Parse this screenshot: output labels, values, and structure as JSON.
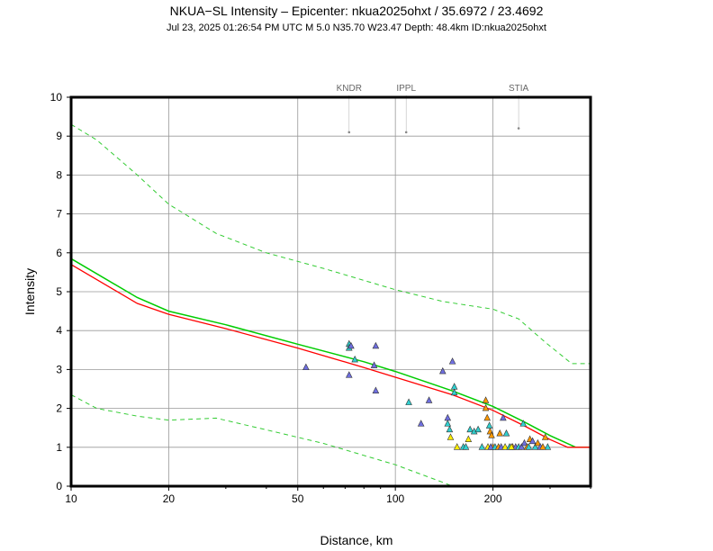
{
  "header": {
    "title": "NKUA−SL Intensity –   Epicenter: nkua2025ohxt / 35.6972 / 23.4692",
    "subtitle": "Jul 23, 2025 01:26:54 PM UTC   M 5.0   N35.70 W23.47   Depth: 48.4km   ID:nkua2025ohxt"
  },
  "chart_data": {
    "type": "scatter",
    "xlabel": "Distance, km",
    "ylabel": "Intensity",
    "xscale": "log",
    "xlim": [
      10,
      400
    ],
    "ylim": [
      0,
      10
    ],
    "xticks": [
      "10",
      "20",
      "50",
      "100",
      "200"
    ],
    "yticks": [
      "0",
      "1",
      "2",
      "3",
      "4",
      "5",
      "6",
      "7",
      "8",
      "9",
      "10"
    ],
    "grid": true,
    "colors": {
      "mean_red": "#ff0000",
      "mean_green": "#00cc00",
      "bounds": "#33cc33",
      "station": "#888888"
    },
    "lines": {
      "red": [
        [
          10,
          5.7
        ],
        [
          16,
          4.7
        ],
        [
          20,
          4.42
        ],
        [
          30,
          4.05
        ],
        [
          50,
          3.55
        ],
        [
          80,
          3.05
        ],
        [
          100,
          2.8
        ],
        [
          150,
          2.35
        ],
        [
          200,
          1.95
        ],
        [
          250,
          1.55
        ],
        [
          300,
          1.2
        ],
        [
          340,
          1.0
        ],
        [
          400,
          1.0
        ]
      ],
      "green": [
        [
          10,
          5.85
        ],
        [
          16,
          4.85
        ],
        [
          20,
          4.5
        ],
        [
          30,
          4.15
        ],
        [
          50,
          3.65
        ],
        [
          80,
          3.2
        ],
        [
          100,
          2.95
        ],
        [
          150,
          2.45
        ],
        [
          200,
          2.05
        ],
        [
          250,
          1.65
        ],
        [
          300,
          1.3
        ],
        [
          360,
          1.0
        ],
        [
          400,
          1.0
        ]
      ],
      "upper": [
        [
          10,
          9.3
        ],
        [
          12,
          8.9
        ],
        [
          16,
          8.0
        ],
        [
          20,
          7.25
        ],
        [
          28,
          6.5
        ],
        [
          40,
          6.0
        ],
        [
          60,
          5.6
        ],
        [
          100,
          5.05
        ],
        [
          140,
          4.75
        ],
        [
          200,
          4.55
        ],
        [
          240,
          4.3
        ],
        [
          290,
          3.7
        ],
        [
          350,
          3.15
        ],
        [
          400,
          3.15
        ]
      ],
      "lower": [
        [
          10,
          2.35
        ],
        [
          12,
          2.0
        ],
        [
          16,
          1.8
        ],
        [
          20,
          1.7
        ],
        [
          28,
          1.75
        ],
        [
          40,
          1.45
        ],
        [
          60,
          1.1
        ],
        [
          100,
          0.55
        ],
        [
          140,
          0.1
        ],
        [
          150,
          0.0
        ]
      ]
    },
    "stations": [
      {
        "name": "KNDR",
        "distance": 72,
        "intensity": 9.1
      },
      {
        "name": "IPPL",
        "distance": 108,
        "intensity": 9.1
      },
      {
        "name": "STIA",
        "distance": 240,
        "intensity": 9.2
      }
    ],
    "points": [
      [
        53,
        3.05,
        "#6f6fe0"
      ],
      [
        72,
        3.65,
        "#30d0d0"
      ],
      [
        72,
        3.55,
        "#30d0d0"
      ],
      [
        73,
        3.6,
        "#6f6fe0"
      ],
      [
        72,
        2.85,
        "#6f6fe0"
      ],
      [
        75,
        3.25,
        "#30d0d0"
      ],
      [
        87,
        3.6,
        "#6f6fe0"
      ],
      [
        86,
        3.1,
        "#6f6fe0"
      ],
      [
        87,
        2.45,
        "#6f6fe0"
      ],
      [
        110,
        2.15,
        "#30d0d0"
      ],
      [
        120,
        1.6,
        "#6f6fe0"
      ],
      [
        127,
        2.2,
        "#6f6fe0"
      ],
      [
        140,
        2.95,
        "#6f6fe0"
      ],
      [
        150,
        3.2,
        "#6f6fe0"
      ],
      [
        152,
        2.55,
        "#30d0d0"
      ],
      [
        152,
        2.4,
        "#30d0d0"
      ],
      [
        145,
        1.75,
        "#6f6fe0"
      ],
      [
        145,
        1.6,
        "#30d0d0"
      ],
      [
        147,
        1.45,
        "#30d0d0"
      ],
      [
        148,
        1.25,
        "#ffee00"
      ],
      [
        155,
        1.0,
        "#ffee00"
      ],
      [
        162,
        1.0,
        "#30d0d0"
      ],
      [
        168,
        1.2,
        "#ffee00"
      ],
      [
        170,
        1.45,
        "#30d0d0"
      ],
      [
        175,
        1.4,
        "#30d0d0"
      ],
      [
        165,
        1.0,
        "#30d0d0"
      ],
      [
        180,
        1.45,
        "#30d0d0"
      ],
      [
        185,
        1.0,
        "#30d0d0"
      ],
      [
        190,
        2.2,
        "#ff9900"
      ],
      [
        190,
        2.0,
        "#ff9900"
      ],
      [
        192,
        1.75,
        "#ff9900"
      ],
      [
        195,
        1.55,
        "#30d0d0"
      ],
      [
        196,
        1.4,
        "#ff9900"
      ],
      [
        198,
        1.3,
        "#ff9900"
      ],
      [
        200,
        1.0,
        "#ff9900"
      ],
      [
        193,
        1.0,
        "#ffee00"
      ],
      [
        197,
        1.0,
        "#6f6fe0"
      ],
      [
        203,
        1.0,
        "#30d0d0"
      ],
      [
        208,
        1.0,
        "#ff9900"
      ],
      [
        212,
        1.0,
        "#6f6fe0"
      ],
      [
        215,
        1.75,
        "#6f6fe0"
      ],
      [
        220,
        1.35,
        "#30d0d0"
      ],
      [
        218,
        1.0,
        "#ffee00"
      ],
      [
        225,
        1.0,
        "#30d0d0"
      ],
      [
        230,
        1.0,
        "#ff9900"
      ],
      [
        235,
        1.0,
        "#6f6fe0"
      ],
      [
        240,
        1.0,
        "#30d0d0"
      ],
      [
        245,
        1.0,
        "#6f6fe0"
      ],
      [
        248,
        1.6,
        "#30d0d0"
      ],
      [
        250,
        1.1,
        "#6f6fe0"
      ],
      [
        255,
        1.0,
        "#ff9900"
      ],
      [
        260,
        1.2,
        "#ff9900"
      ],
      [
        265,
        1.15,
        "#6f6fe0"
      ],
      [
        270,
        1.0,
        "#30d0d0"
      ],
      [
        275,
        1.1,
        "#ff9900"
      ],
      [
        280,
        1.0,
        "#6f6fe0"
      ],
      [
        290,
        1.25,
        "#ff9900"
      ],
      [
        295,
        1.0,
        "#30d0d0"
      ],
      [
        210,
        1.35,
        "#ff9900"
      ],
      [
        228,
        1.0,
        "#ffee00"
      ],
      [
        258,
        1.0,
        "#30d0d0"
      ],
      [
        285,
        1.0,
        "#ff9900"
      ]
    ]
  }
}
